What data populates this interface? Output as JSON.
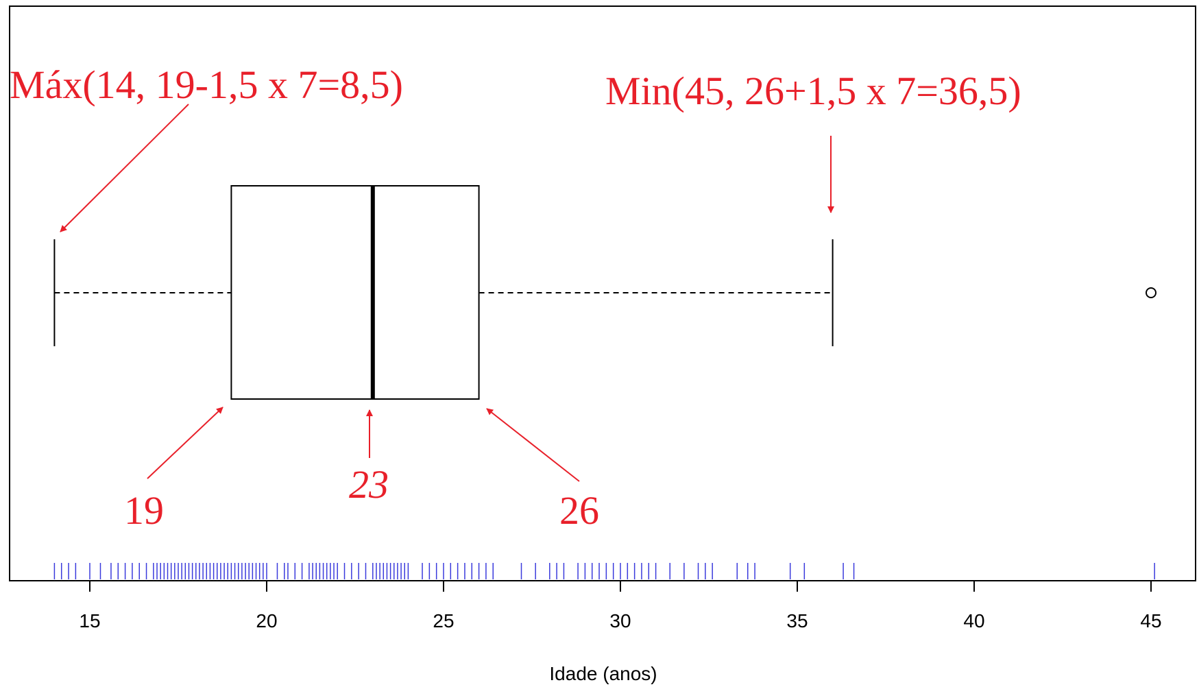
{
  "colors": {
    "annotation": "#e8202a",
    "rug": "#3a3adc",
    "ink": "#000000"
  },
  "chart_data": {
    "type": "boxplot",
    "orientation": "horizontal",
    "xlabel": "Idade (anos)",
    "xlim": [
      13.7,
      46.2
    ],
    "ticks": [
      15,
      20,
      25,
      30,
      35,
      40,
      45
    ],
    "tick_labels": [
      "15",
      "20",
      "25",
      "30",
      "35",
      "40",
      "45"
    ],
    "box": {
      "whisker_low": 14,
      "q1": 19,
      "median": 23,
      "q3": 26,
      "whisker_high": 36,
      "outliers": [
        45
      ]
    },
    "rug": [
      14,
      14.2,
      14.4,
      14.6,
      15,
      15.3,
      15.6,
      15.8,
      16,
      16.2,
      16.4,
      16.6,
      16.8,
      16.9,
      17,
      17.1,
      17.2,
      17.3,
      17.4,
      17.5,
      17.6,
      17.7,
      17.8,
      17.9,
      18,
      18.1,
      18.2,
      18.3,
      18.4,
      18.5,
      18.6,
      18.7,
      18.8,
      18.9,
      19,
      19.1,
      19.2,
      19.3,
      19.4,
      19.5,
      19.6,
      19.7,
      19.8,
      19.9,
      20,
      20.3,
      20.5,
      20.6,
      20.8,
      21,
      21.2,
      21.3,
      21.4,
      21.5,
      21.6,
      21.7,
      21.8,
      21.9,
      22,
      22.2,
      22.4,
      22.6,
      22.8,
      23,
      23.1,
      23.2,
      23.3,
      23.4,
      23.5,
      23.6,
      23.7,
      23.8,
      23.9,
      24,
      24.4,
      24.6,
      24.8,
      25,
      25.2,
      25.4,
      25.6,
      25.8,
      26,
      26.2,
      26.4,
      27.2,
      27.6,
      28,
      28.2,
      28.4,
      28.8,
      29,
      29.2,
      29.4,
      29.6,
      29.8,
      30,
      30.2,
      30.4,
      30.6,
      30.8,
      31,
      31.4,
      31.8,
      32.2,
      32.4,
      32.6,
      33.3,
      33.6,
      33.8,
      34.8,
      35.2,
      36.3,
      36.6,
      45.1
    ],
    "annotations": [
      {
        "text": "Máx(14, 19-1,5 x 7=8,5)",
        "style": "normal"
      },
      {
        "text": "Min(45, 26+1,5 x 7=36,5)",
        "style": "normal"
      },
      {
        "text": "19",
        "style": "normal"
      },
      {
        "text": "23",
        "style": "italic"
      },
      {
        "text": "26",
        "style": "normal"
      }
    ]
  }
}
